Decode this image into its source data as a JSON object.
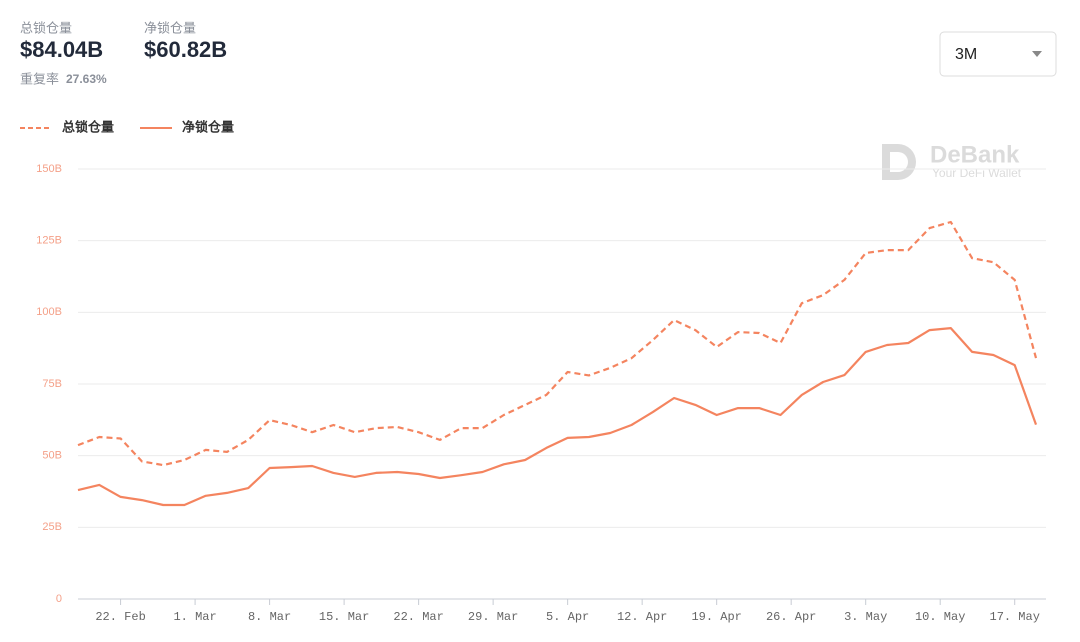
{
  "header": {
    "total_label": "总锁仓量",
    "total_value": "$84.04B",
    "net_label": "净锁仓量",
    "net_value": "$60.82B",
    "dup_label": "重复率",
    "dup_value": "27.63%"
  },
  "range_select": "3M",
  "watermark": {
    "brand": "DeBank",
    "tagline": "Your DeFi Wallet"
  },
  "chart_data": {
    "type": "line",
    "x": [
      "18. Feb",
      "20. Feb",
      "22. Feb",
      "24. Feb",
      "26. Feb",
      "28. Feb",
      "2. Mar",
      "4. Mar",
      "6. Mar",
      "8. Mar",
      "10. Mar",
      "12. Mar",
      "14. Mar",
      "16. Mar",
      "18. Mar",
      "20. Mar",
      "22. Mar",
      "24. Mar",
      "26. Mar",
      "28. Mar",
      "30. Mar",
      "1. Apr",
      "3. Apr",
      "5. Apr",
      "7. Apr",
      "9. Apr",
      "11. Apr",
      "13. Apr",
      "15. Apr",
      "17. Apr",
      "19. Apr",
      "21. Apr",
      "23. Apr",
      "25. Apr",
      "27. Apr",
      "29. Apr",
      "1. May",
      "3. May",
      "5. May",
      "7. May",
      "9. May",
      "11. May",
      "13. May",
      "15. May",
      "17. May",
      "19. May"
    ],
    "series": [
      {
        "name": "总锁仓量",
        "color": "#f4845f",
        "dashed": true,
        "values": [
          53.7,
          56.5,
          56,
          48,
          46.7,
          48.5,
          52,
          51.3,
          55.5,
          62.4,
          60.7,
          58.2,
          60.7,
          58.2,
          59.6,
          60,
          58.2,
          55.5,
          59.6,
          59.6,
          64.2,
          67.7,
          71.2,
          79.2,
          78,
          80.6,
          84,
          90.3,
          97.3,
          93.8,
          87.9,
          93.1,
          92.8,
          89.3,
          103.2,
          106,
          111.3,
          120.7,
          121.7,
          121.7,
          129.4,
          131.5,
          118.9,
          117.5,
          111.3,
          84.04
        ]
      },
      {
        "name": "净锁仓量",
        "color": "#f4845f",
        "dashed": false,
        "values": [
          38,
          39.8,
          35.6,
          34.5,
          32.8,
          32.8,
          36,
          37,
          38.7,
          45.7,
          46,
          46.4,
          44,
          42.6,
          44,
          44.3,
          43.6,
          42.2,
          43.2,
          44.3,
          47,
          48.5,
          52.7,
          56.2,
          56.5,
          57.9,
          60.7,
          65.2,
          70.1,
          67.7,
          64.2,
          66.6,
          66.6,
          64.2,
          71.2,
          75.7,
          78.1,
          86.2,
          88.6,
          89.3,
          93.8,
          94.5,
          86.2,
          85.1,
          81.6,
          60.82
        ]
      }
    ],
    "xlim": [
      "18. Feb",
      "19. May"
    ],
    "xticks": [
      "22. Feb",
      "1. Mar",
      "8. Mar",
      "15. Mar",
      "22. Mar",
      "29. Mar",
      "5. Apr",
      "12. Apr",
      "19. Apr",
      "26. Apr",
      "3. May",
      "10. May",
      "17. May"
    ],
    "ylim": [
      0,
      150
    ],
    "yticks": [
      0,
      {
        "value": 25,
        "label": "25B"
      },
      {
        "value": 50,
        "label": "50B"
      },
      {
        "value": 75,
        "label": "75B"
      },
      {
        "value": 100,
        "label": "100B"
      },
      {
        "value": 125,
        "label": "125B"
      },
      {
        "value": 150,
        "label": "150B"
      }
    ],
    "grid": true
  }
}
